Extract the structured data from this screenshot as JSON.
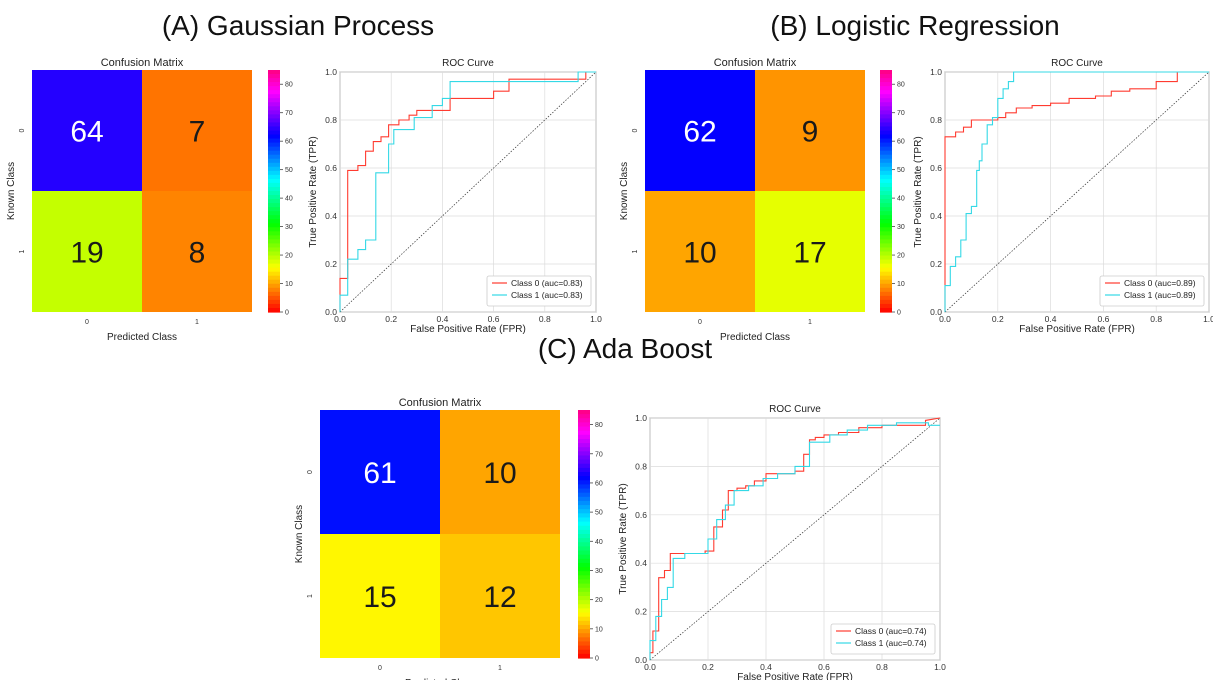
{
  "panels": [
    {
      "title": "(A) Gaussian Process",
      "confusion": {
        "title": "Confusion Matrix",
        "xlabel": "Predicted Class",
        "ylabel": "Known Class",
        "x_ticks": [
          "0",
          "1"
        ],
        "y_ticks": [
          "0",
          "1"
        ],
        "cells": [
          [
            64,
            7
          ],
          [
            19,
            8
          ]
        ],
        "colorbar_ticks": [
          "0",
          "10",
          "20",
          "30",
          "40",
          "50",
          "60",
          "70",
          "80"
        ],
        "colormap": "gist_rainbow_reversed",
        "vmin": 0,
        "vmax": 85
      },
      "roc": {
        "title": "ROC Curve",
        "xlabel": "False Positive Rate (FPR)",
        "ylabel": "True Positive Rate (TPR)",
        "x_ticks": [
          "0.0",
          "0.2",
          "0.4",
          "0.6",
          "0.8",
          "1.0"
        ],
        "y_ticks": [
          "0.0",
          "0.2",
          "0.4",
          "0.6",
          "0.8",
          "1.0"
        ],
        "xlim": [
          0,
          1
        ],
        "ylim": [
          0,
          1
        ],
        "grid": true,
        "legend_position": "bottom-right",
        "series": [
          {
            "name": "Class 0 (auc=0.83)",
            "color": "#ff3b30",
            "x": [
              0,
              0,
              0.03,
              0.03,
              0.07,
              0.07,
              0.1,
              0.1,
              0.13,
              0.13,
              0.16,
              0.16,
              0.19,
              0.19,
              0.23,
              0.23,
              0.27,
              0.27,
              0.3,
              0.3,
              0.36,
              0.36,
              0.43,
              0.43,
              0.6,
              0.6,
              0.66,
              0.66,
              0.86,
              0.86,
              0.96,
              0.96,
              1.0
            ],
            "y": [
              0,
              0.14,
              0.14,
              0.59,
              0.59,
              0.61,
              0.61,
              0.67,
              0.67,
              0.71,
              0.71,
              0.73,
              0.73,
              0.78,
              0.78,
              0.8,
              0.8,
              0.82,
              0.82,
              0.84,
              0.84,
              0.84,
              0.84,
              0.89,
              0.89,
              0.92,
              0.92,
              0.97,
              0.97,
              0.97,
              0.97,
              1.0,
              1.0
            ]
          },
          {
            "name": "Class 1 (auc=0.83)",
            "color": "#34d9e6",
            "x": [
              0,
              0,
              0.03,
              0.03,
              0.07,
              0.07,
              0.1,
              0.1,
              0.14,
              0.14,
              0.19,
              0.19,
              0.21,
              0.21,
              0.29,
              0.29,
              0.36,
              0.36,
              0.4,
              0.4,
              0.43,
              0.43,
              0.9,
              0.9,
              0.93,
              0.93,
              1.0
            ],
            "y": [
              0,
              0.07,
              0.07,
              0.22,
              0.22,
              0.26,
              0.26,
              0.3,
              0.3,
              0.58,
              0.58,
              0.7,
              0.7,
              0.76,
              0.76,
              0.81,
              0.81,
              0.86,
              0.86,
              0.89,
              0.89,
              0.96,
              0.96,
              0.96,
              0.96,
              1.0,
              1.0
            ]
          }
        ]
      }
    },
    {
      "title": "(B) Logistic Regression",
      "confusion": {
        "title": "Confusion Matrix",
        "xlabel": "Predicted Class",
        "ylabel": "Known Class",
        "x_ticks": [
          "0",
          "1"
        ],
        "y_ticks": [
          "0",
          "1"
        ],
        "cells": [
          [
            62,
            9
          ],
          [
            10,
            17
          ]
        ],
        "colorbar_ticks": [
          "0",
          "10",
          "20",
          "30",
          "40",
          "50",
          "60",
          "70",
          "80"
        ],
        "colormap": "gist_rainbow_reversed",
        "vmin": 0,
        "vmax": 85
      },
      "roc": {
        "title": "ROC Curve",
        "xlabel": "False Positive Rate (FPR)",
        "ylabel": "True Positive Rate (TPR)",
        "x_ticks": [
          "0.0",
          "0.2",
          "0.4",
          "0.6",
          "0.8",
          "1.0"
        ],
        "y_ticks": [
          "0.0",
          "0.2",
          "0.4",
          "0.6",
          "0.8",
          "1.0"
        ],
        "xlim": [
          0,
          1
        ],
        "ylim": [
          0,
          1
        ],
        "grid": true,
        "legend_position": "bottom-right",
        "series": [
          {
            "name": "Class 0 (auc=0.89)",
            "color": "#ff3b30",
            "x": [
              0,
              0,
              0.04,
              0.04,
              0.07,
              0.07,
              0.1,
              0.1,
              0.2,
              0.2,
              0.23,
              0.23,
              0.27,
              0.27,
              0.33,
              0.33,
              0.4,
              0.4,
              0.47,
              0.47,
              0.57,
              0.57,
              0.63,
              0.63,
              0.7,
              0.7,
              0.8,
              0.8,
              0.88,
              0.88,
              1.0
            ],
            "y": [
              0,
              0.73,
              0.73,
              0.75,
              0.75,
              0.77,
              0.77,
              0.8,
              0.8,
              0.81,
              0.81,
              0.83,
              0.83,
              0.85,
              0.85,
              0.86,
              0.86,
              0.87,
              0.87,
              0.89,
              0.89,
              0.9,
              0.9,
              0.92,
              0.92,
              0.93,
              0.93,
              0.96,
              0.96,
              1.0,
              1.0
            ]
          },
          {
            "name": "Class 1 (auc=0.89)",
            "color": "#34d9e6",
            "x": [
              0,
              0,
              0.02,
              0.02,
              0.04,
              0.04,
              0.06,
              0.06,
              0.08,
              0.08,
              0.1,
              0.1,
              0.12,
              0.12,
              0.13,
              0.13,
              0.14,
              0.14,
              0.16,
              0.16,
              0.18,
              0.18,
              0.2,
              0.2,
              0.22,
              0.22,
              0.24,
              0.24,
              0.26,
              0.26,
              1.0
            ],
            "y": [
              0,
              0.11,
              0.11,
              0.19,
              0.19,
              0.23,
              0.23,
              0.3,
              0.3,
              0.41,
              0.41,
              0.44,
              0.44,
              0.59,
              0.59,
              0.63,
              0.63,
              0.7,
              0.7,
              0.78,
              0.78,
              0.81,
              0.81,
              0.89,
              0.89,
              0.93,
              0.93,
              0.96,
              0.96,
              1.0,
              1.0
            ]
          }
        ]
      }
    },
    {
      "title": "(C) Ada Boost",
      "confusion": {
        "title": "Confusion Matrix",
        "xlabel": "Predicted Class",
        "ylabel": "Known Class",
        "x_ticks": [
          "0",
          "1"
        ],
        "y_ticks": [
          "0",
          "1"
        ],
        "cells": [
          [
            61,
            10
          ],
          [
            15,
            12
          ]
        ],
        "colorbar_ticks": [
          "0",
          "10",
          "20",
          "30",
          "40",
          "50",
          "60",
          "70",
          "80"
        ],
        "colormap": "gist_rainbow_reversed",
        "vmin": 0,
        "vmax": 85
      },
      "roc": {
        "title": "ROC Curve",
        "xlabel": "False Positive Rate (FPR)",
        "ylabel": "True Positive Rate (TPR)",
        "x_ticks": [
          "0.0",
          "0.2",
          "0.4",
          "0.6",
          "0.8",
          "1.0"
        ],
        "y_ticks": [
          "0.0",
          "0.2",
          "0.4",
          "0.6",
          "0.8",
          "1.0"
        ],
        "xlim": [
          0,
          1
        ],
        "ylim": [
          0,
          1
        ],
        "grid": true,
        "legend_position": "bottom-right",
        "series": [
          {
            "name": "Class 0 (auc=0.74)",
            "color": "#ff3b30",
            "x": [
              0,
              0,
              0.01,
              0.01,
              0.03,
              0.03,
              0.05,
              0.05,
              0.07,
              0.07,
              0.1,
              0.1,
              0.19,
              0.19,
              0.22,
              0.22,
              0.25,
              0.25,
              0.27,
              0.27,
              0.3,
              0.3,
              0.33,
              0.33,
              0.36,
              0.36,
              0.4,
              0.4,
              0.5,
              0.5,
              0.53,
              0.53,
              0.55,
              0.55,
              0.57,
              0.57,
              0.6,
              0.6,
              0.65,
              0.65,
              0.72,
              0.72,
              0.8,
              0.8,
              0.95,
              0.95,
              1.0
            ],
            "y": [
              0,
              0.03,
              0.03,
              0.12,
              0.12,
              0.34,
              0.34,
              0.37,
              0.37,
              0.44,
              0.44,
              0.44,
              0.44,
              0.45,
              0.45,
              0.55,
              0.55,
              0.62,
              0.62,
              0.7,
              0.7,
              0.71,
              0.71,
              0.72,
              0.72,
              0.74,
              0.74,
              0.77,
              0.77,
              0.78,
              0.78,
              0.85,
              0.85,
              0.91,
              0.91,
              0.92,
              0.92,
              0.93,
              0.93,
              0.94,
              0.94,
              0.96,
              0.96,
              0.97,
              0.97,
              0.99,
              1.0
            ]
          },
          {
            "name": "Class 1 (auc=0.74)",
            "color": "#34d9e6",
            "x": [
              0,
              0,
              0.02,
              0.02,
              0.04,
              0.04,
              0.06,
              0.06,
              0.08,
              0.08,
              0.12,
              0.12,
              0.2,
              0.2,
              0.23,
              0.23,
              0.26,
              0.26,
              0.29,
              0.29,
              0.34,
              0.34,
              0.39,
              0.39,
              0.44,
              0.44,
              0.5,
              0.5,
              0.55,
              0.55,
              0.62,
              0.62,
              0.68,
              0.68,
              0.75,
              0.75,
              0.85,
              0.85,
              0.96,
              0.96,
              1.0
            ],
            "y": [
              0,
              0.08,
              0.08,
              0.18,
              0.18,
              0.25,
              0.25,
              0.3,
              0.3,
              0.42,
              0.42,
              0.44,
              0.44,
              0.5,
              0.5,
              0.58,
              0.58,
              0.64,
              0.64,
              0.7,
              0.7,
              0.72,
              0.72,
              0.75,
              0.75,
              0.77,
              0.77,
              0.8,
              0.8,
              0.9,
              0.9,
              0.93,
              0.93,
              0.95,
              0.95,
              0.97,
              0.97,
              0.98,
              0.98,
              0.97,
              0.97
            ]
          }
        ]
      }
    }
  ],
  "chart_data": [
    {
      "type": "heatmap",
      "title": "Confusion Matrix",
      "panel": "(A) Gaussian Process",
      "x_categories": [
        "0",
        "1"
      ],
      "y_categories": [
        "0",
        "1"
      ],
      "xlabel": "Predicted Class",
      "ylabel": "Known Class",
      "values": [
        [
          64,
          7
        ],
        [
          19,
          8
        ]
      ],
      "colorbar_range": [
        0,
        85
      ]
    },
    {
      "type": "line",
      "title": "ROC Curve",
      "panel": "(A) Gaussian Process",
      "xlabel": "False Positive Rate (FPR)",
      "ylabel": "True Positive Rate (TPR)",
      "xlim": [
        0,
        1
      ],
      "ylim": [
        0,
        1
      ],
      "grid": true,
      "legend_position": "bottom-right",
      "series": [
        {
          "name": "Class 0 (auc=0.83)"
        },
        {
          "name": "Class 1 (auc=0.83)"
        }
      ]
    },
    {
      "type": "heatmap",
      "title": "Confusion Matrix",
      "panel": "(B) Logistic Regression",
      "x_categories": [
        "0",
        "1"
      ],
      "y_categories": [
        "0",
        "1"
      ],
      "xlabel": "Predicted Class",
      "ylabel": "Known Class",
      "values": [
        [
          62,
          9
        ],
        [
          10,
          17
        ]
      ],
      "colorbar_range": [
        0,
        85
      ]
    },
    {
      "type": "line",
      "title": "ROC Curve",
      "panel": "(B) Logistic Regression",
      "xlabel": "False Positive Rate (FPR)",
      "ylabel": "True Positive Rate (TPR)",
      "xlim": [
        0,
        1
      ],
      "ylim": [
        0,
        1
      ],
      "grid": true,
      "legend_position": "bottom-right",
      "series": [
        {
          "name": "Class 0 (auc=0.89)"
        },
        {
          "name": "Class 1 (auc=0.89)"
        }
      ]
    },
    {
      "type": "heatmap",
      "title": "Confusion Matrix",
      "panel": "(C) Ada Boost",
      "x_categories": [
        "0",
        "1"
      ],
      "y_categories": [
        "0",
        "1"
      ],
      "xlabel": "Predicted Class",
      "ylabel": "Known Class",
      "values": [
        [
          61,
          10
        ],
        [
          15,
          12
        ]
      ],
      "colorbar_range": [
        0,
        85
      ]
    },
    {
      "type": "line",
      "title": "ROC Curve",
      "panel": "(C) Ada Boost",
      "xlabel": "False Positive Rate (FPR)",
      "ylabel": "True Positive Rate (TPR)",
      "xlim": [
        0,
        1
      ],
      "ylim": [
        0,
        1
      ],
      "grid": true,
      "legend_position": "bottom-right",
      "series": [
        {
          "name": "Class 0 (auc=0.74)"
        },
        {
          "name": "Class 1 (auc=0.74)"
        }
      ]
    }
  ]
}
